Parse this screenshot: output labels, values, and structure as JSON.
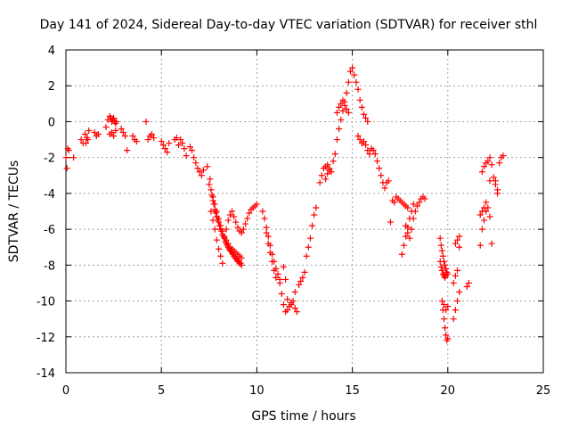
{
  "chart_data": {
    "type": "scatter",
    "title": "Day 141 of 2024, Sidereal Day-to-day VTEC variation (SDTVAR) for receiver sthl",
    "xlabel": "GPS time / hours",
    "ylabel": "SDTVAR / TECUs",
    "xlim": [
      0,
      25
    ],
    "ylim": [
      -14,
      4
    ],
    "xticks": [
      0,
      5,
      10,
      15,
      20,
      25
    ],
    "yticks": [
      -14,
      -12,
      -10,
      -8,
      -6,
      -4,
      -2,
      0,
      2,
      4
    ],
    "grid": true,
    "marker": "+",
    "color": "#ff0000",
    "series": [
      {
        "name": "SDTVAR",
        "x": [
          0.0,
          0.05,
          0.1,
          0.15,
          0.4,
          0.8,
          0.9,
          1.0,
          1.1,
          1.2,
          1.05,
          1.15,
          1.5,
          1.6,
          1.7,
          2.1,
          2.2,
          2.3,
          2.35,
          2.4,
          2.45,
          2.5,
          2.55,
          2.6,
          2.65,
          2.3,
          2.4,
          2.5,
          2.6,
          2.9,
          3.0,
          3.1,
          3.2,
          3.5,
          3.6,
          3.7,
          4.2,
          4.3,
          4.4,
          4.5,
          4.6,
          5.0,
          5.1,
          5.2,
          5.3,
          5.4,
          5.7,
          5.8,
          5.9,
          6.0,
          6.1,
          6.2,
          6.3,
          6.5,
          6.6,
          6.7,
          6.8,
          6.9,
          7.0,
          7.1,
          7.2,
          7.4,
          7.5,
          7.55,
          7.6,
          7.65,
          7.7,
          7.75,
          7.8,
          7.85,
          7.9,
          7.95,
          8.0,
          8.05,
          8.1,
          8.15,
          8.2,
          8.25,
          8.3,
          8.35,
          8.4,
          8.45,
          8.5,
          8.55,
          8.6,
          8.65,
          8.7,
          8.75,
          8.8,
          8.85,
          8.9,
          8.95,
          9.0,
          9.05,
          9.1,
          9.15,
          9.2,
          7.6,
          7.7,
          7.8,
          7.9,
          8.0,
          8.1,
          8.2,
          8.3,
          8.4,
          8.5,
          8.6,
          8.7,
          8.8,
          8.9,
          9.0,
          9.1,
          9.2,
          9.3,
          9.4,
          9.5,
          9.6,
          9.7,
          9.8,
          9.9,
          10.0,
          7.7,
          7.8,
          7.9,
          8.0,
          8.1,
          8.2,
          8.3,
          8.4,
          8.5,
          8.6,
          8.7,
          8.8,
          8.9,
          9.0,
          9.1,
          9.2,
          10.3,
          10.4,
          10.5,
          10.6,
          10.7,
          10.8,
          10.9,
          11.0,
          11.1,
          11.2,
          10.5,
          10.6,
          10.7,
          10.8,
          10.9,
          11.0,
          11.2,
          11.3,
          11.4,
          11.5,
          11.6,
          11.7,
          11.8,
          11.9,
          12.0,
          12.1,
          11.4,
          11.5,
          11.6,
          11.8,
          12.0,
          12.2,
          12.3,
          12.4,
          12.5,
          12.6,
          12.7,
          12.8,
          12.9,
          13.0,
          13.1,
          13.3,
          13.4,
          13.5,
          13.6,
          13.7,
          13.8,
          13.9,
          13.6,
          13.7,
          13.8,
          14.0,
          14.1,
          14.2,
          14.3,
          14.4,
          14.5,
          14.6,
          14.7,
          14.8,
          14.9,
          15.0,
          14.2,
          14.3,
          14.4,
          14.5,
          14.6,
          14.7,
          14.8,
          15.1,
          15.2,
          15.3,
          15.4,
          15.5,
          15.6,
          15.7,
          15.8,
          15.3,
          15.4,
          15.5,
          15.6,
          15.7,
          15.8,
          15.9,
          16.0,
          16.1,
          16.2,
          16.3,
          16.4,
          16.5,
          16.6,
          16.7,
          16.8,
          16.9,
          17.0,
          17.1,
          17.2,
          17.3,
          17.4,
          17.5,
          17.6,
          17.7,
          17.8,
          17.9,
          17.6,
          17.7,
          17.8,
          17.9,
          18.0,
          18.1,
          18.2,
          17.8,
          17.9,
          18.0,
          18.1,
          18.2,
          18.3,
          18.4,
          18.5,
          18.6,
          18.7,
          18.8,
          19.6,
          19.65,
          19.7,
          19.75,
          19.8,
          19.85,
          19.9,
          19.95,
          20.0,
          19.7,
          19.75,
          19.8,
          19.85,
          19.9,
          19.95,
          20.0,
          19.8,
          19.9,
          20.0,
          19.6,
          19.65,
          19.7,
          19.75,
          19.8,
          19.85,
          19.9,
          20.3,
          20.4,
          20.5,
          20.6,
          20.3,
          20.4,
          20.5,
          20.6,
          20.4,
          20.5,
          20.6,
          21.0,
          21.1,
          21.7,
          21.8,
          21.9,
          22.0,
          22.1,
          22.2,
          22.3,
          21.8,
          21.9,
          22.0,
          22.1,
          22.2,
          22.3,
          21.7,
          21.8,
          21.9,
          22.0,
          22.2,
          22.4,
          22.5,
          22.6,
          22.7,
          22.8,
          22.9,
          22.5,
          22.6
        ],
        "y": [
          -2.0,
          -2.6,
          -1.5,
          -1.6,
          -2.0,
          -1.0,
          -1.2,
          -0.7,
          -0.9,
          -0.5,
          -1.2,
          -1.0,
          -0.6,
          -0.8,
          -0.7,
          -0.3,
          0.1,
          0.3,
          0.2,
          0.0,
          0.1,
          0.2,
          0.0,
          -0.1,
          0.0,
          -0.7,
          -0.6,
          -0.8,
          -0.5,
          -0.4,
          -0.6,
          -0.8,
          -1.6,
          -0.8,
          -1.0,
          -1.1,
          0.0,
          -1.0,
          -0.8,
          -0.7,
          -0.9,
          -1.1,
          -1.3,
          -1.5,
          -1.7,
          -1.2,
          -1.0,
          -0.9,
          -1.3,
          -1.0,
          -1.2,
          -1.5,
          -1.9,
          -1.4,
          -1.6,
          -2.0,
          -2.3,
          -2.6,
          -2.8,
          -3.0,
          -2.7,
          -2.5,
          -3.5,
          -3.2,
          -3.8,
          -4.1,
          -4.4,
          -4.6,
          -4.9,
          -5.1,
          -5.3,
          -5.5,
          -5.6,
          -5.8,
          -6.0,
          -6.1,
          -6.3,
          -6.4,
          -6.5,
          -6.7,
          -6.8,
          -6.9,
          -7.0,
          -7.1,
          -7.2,
          -7.2,
          -7.3,
          -7.4,
          -7.5,
          -7.6,
          -7.6,
          -7.7,
          -7.8,
          -7.8,
          -7.9,
          -7.9,
          -8.0,
          -5.0,
          -5.5,
          -6.0,
          -6.6,
          -7.1,
          -7.5,
          -7.9,
          -6.5,
          -6.0,
          -5.5,
          -5.2,
          -5.0,
          -5.3,
          -5.6,
          -5.9,
          -6.1,
          -6.2,
          -6.0,
          -5.7,
          -5.4,
          -5.1,
          -4.9,
          -4.8,
          -4.7,
          -4.6,
          -4.2,
          -4.6,
          -5.0,
          -5.4,
          -5.8,
          -6.1,
          -6.4,
          -6.6,
          -6.8,
          -7.0,
          -7.1,
          -7.2,
          -7.3,
          -7.4,
          -7.5,
          -7.6,
          -5.0,
          -5.4,
          -5.9,
          -6.4,
          -6.9,
          -7.4,
          -7.8,
          -8.2,
          -8.5,
          -8.8,
          -6.2,
          -6.8,
          -7.3,
          -7.8,
          -8.3,
          -8.7,
          -9.0,
          -9.6,
          -10.2,
          -10.6,
          -10.5,
          -10.3,
          -10.2,
          -10.0,
          -10.4,
          -10.6,
          -8.1,
          -8.8,
          -9.9,
          -10.1,
          -9.5,
          -9.1,
          -8.9,
          -8.7,
          -8.4,
          -7.5,
          -7.0,
          -6.5,
          -5.8,
          -5.2,
          -4.8,
          -3.4,
          -3.0,
          -2.6,
          -2.5,
          -2.4,
          -2.6,
          -2.8,
          -3.2,
          -2.9,
          -2.7,
          -2.2,
          -1.8,
          -1.0,
          -0.4,
          0.1,
          0.6,
          1.1,
          1.6,
          2.2,
          2.8,
          3.0,
          0.5,
          0.8,
          1.0,
          1.2,
          0.9,
          0.7,
          0.5,
          2.6,
          2.2,
          1.8,
          1.2,
          0.8,
          0.4,
          0.2,
          0.0,
          -0.8,
          -1.0,
          -1.2,
          -1.1,
          -1.3,
          -1.6,
          -1.8,
          -1.5,
          -1.6,
          -1.8,
          -2.2,
          -2.6,
          -3.0,
          -3.4,
          -3.7,
          -3.4,
          -3.3,
          -5.6,
          -4.4,
          -4.5,
          -4.2,
          -4.3,
          -4.4,
          -4.5,
          -4.6,
          -4.7,
          -4.8,
          -7.4,
          -6.9,
          -6.4,
          -5.9,
          -5.4,
          -5.0,
          -4.6,
          -5.8,
          -6.2,
          -6.5,
          -6.0,
          -5.4,
          -5.0,
          -4.7,
          -4.5,
          -4.3,
          -4.2,
          -4.3,
          -6.5,
          -6.9,
          -7.2,
          -7.5,
          -7.8,
          -8.0,
          -8.2,
          -8.4,
          -8.5,
          -10.0,
          -10.5,
          -11.0,
          -11.5,
          -11.9,
          -12.2,
          -12.1,
          -10.2,
          -10.5,
          -10.3,
          -7.8,
          -8.1,
          -8.3,
          -8.5,
          -8.6,
          -8.7,
          -8.6,
          -11.0,
          -10.5,
          -10.0,
          -9.5,
          -9.0,
          -8.6,
          -8.3,
          -7.0,
          -6.8,
          -6.6,
          -6.4,
          -9.2,
          -9.0,
          -6.9,
          -6.0,
          -5.5,
          -5.0,
          -4.8,
          -5.3,
          -6.8,
          -2.8,
          -2.5,
          -2.3,
          -2.2,
          -2.0,
          -2.4,
          -5.2,
          -5.0,
          -4.8,
          -4.5,
          -3.3,
          -3.1,
          -3.3,
          -4.0,
          -2.3,
          -2.0,
          -1.9,
          -3.5,
          -3.8
        ]
      }
    ]
  }
}
